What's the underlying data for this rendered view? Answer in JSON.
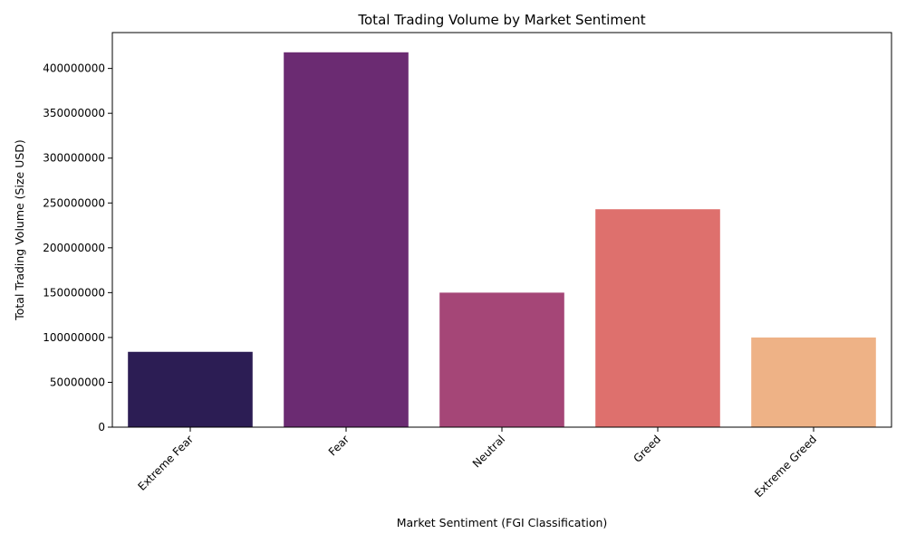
{
  "chart_data": {
    "type": "bar",
    "title": "Total Trading Volume by Market Sentiment",
    "xlabel": "Market Sentiment (FGI Classification)",
    "ylabel": "Total Trading Volume (Size USD)",
    "categories": [
      "Extreme Fear",
      "Fear",
      "Neutral",
      "Greed",
      "Extreme Greed"
    ],
    "values": [
      84000000,
      418000000,
      150000000,
      243000000,
      100000000
    ],
    "colors": [
      "#2c1d54",
      "#6b2b72",
      "#a54677",
      "#de706d",
      "#eeb286"
    ],
    "ylim": [
      0,
      440000000
    ],
    "yticks": [
      0,
      50000000,
      100000000,
      150000000,
      200000000,
      250000000,
      300000000,
      350000000,
      400000000
    ],
    "ytick_labels": [
      "0",
      "50000000",
      "100000000",
      "150000000",
      "200000000",
      "250000000",
      "300000000",
      "350000000",
      "400000000"
    ],
    "grid": false,
    "legend": "none"
  }
}
